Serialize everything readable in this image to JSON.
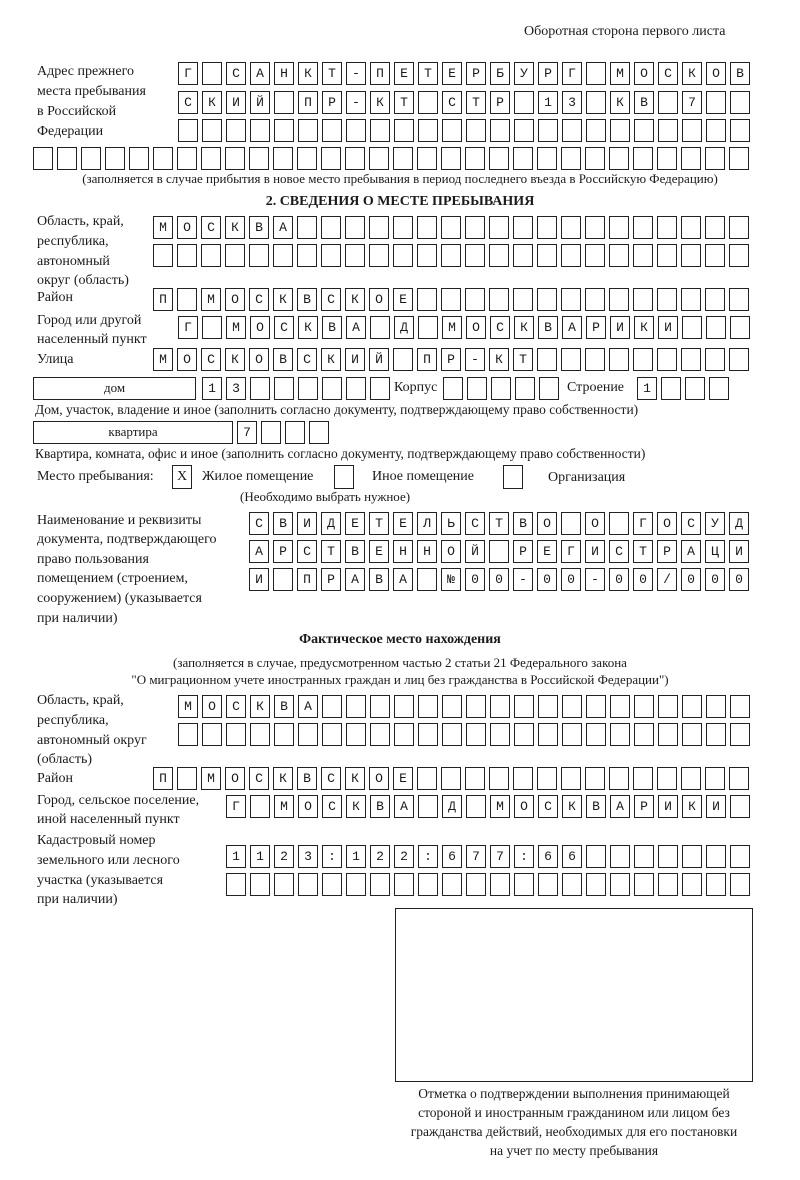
{
  "header": "Оборотная сторона первого листа",
  "prev_address": {
    "label": [
      "Адрес прежнего",
      "места пребывания",
      "в Российской",
      "Федерации"
    ],
    "rows": [
      "Г САНКТ-ПЕТЕРБУРГ МОСКОВ",
      "СКИЙ ПР-КТ СТР 13 КВ 7",
      "",
      ""
    ],
    "note": "(заполняется в случае прибытия в новое место пребывания в период последнего въезда в Российскую Федерацию)"
  },
  "section2": {
    "title": "2. СВЕДЕНИЯ О МЕСТЕ ПРЕБЫВАНИЯ",
    "region_label": [
      "Область, край,",
      "республика,",
      "автономный",
      "округ (область)"
    ],
    "region_rows": [
      "МОСКВА",
      ""
    ],
    "district_label": "Район",
    "district": "П МОСКВСКОЕ",
    "city_label": [
      "Город или другой",
      "населенный пункт"
    ],
    "city": "Г МОСКВА Д МОСКВАРИКИ",
    "street_label": "Улица",
    "street": "МОСКОВСКИЙ ПР-КТ",
    "house_type": "дом",
    "house": "13",
    "korpus_label": "Корпус",
    "korpus": "",
    "building_label": "Строение",
    "building": "1",
    "house_note": "Дом, участок, владение и иное (заполнить согласно документу, подтверждающему право собственности)",
    "flat_type": "квартира",
    "flat": "7",
    "flat_note": "Квартира, комната, офис и иное (заполнить согласно документу, подтверждающему право собственности)",
    "stay_label": "Место пребывания:",
    "stay_options": [
      {
        "label": "Жилое помещение",
        "mark": "X",
        "checked": true
      },
      {
        "label": "Иное помещение",
        "mark": "",
        "checked": false
      },
      {
        "label": "Организация",
        "mark": "",
        "checked": false
      }
    ],
    "stay_note": "(Необходимо выбрать нужное)",
    "doc_label": [
      "Наименование и реквизиты",
      "документа, подтверждающего",
      "право пользования",
      "помещением (строением,",
      "сооружением) (указывается",
      "при наличии)"
    ],
    "doc_rows": [
      "СВИДЕТЕЛЬСТВО О ГОСУД",
      "АРСТВЕННОЙ РЕГИСТРАЦИ",
      "И ПРАВА №00-00-00/000"
    ]
  },
  "actual": {
    "title": "Фактическое место нахождения",
    "note": [
      "(заполняется в случае, предусмотренном частью 2 статьи 21 Федерального закона",
      "\"О миграционном учете иностранных граждан и лиц без гражданства в Российской Федерации\")"
    ],
    "region_label": [
      "Область, край,",
      "республика,",
      "автономный округ",
      "(область)"
    ],
    "region_rows": [
      "МОСКВА",
      ""
    ],
    "district_label": "Район",
    "district": "П МОСКВСКОЕ",
    "city_label": [
      "Город, сельское поселение,",
      "иной населенный пункт"
    ],
    "city": "Г МОСКВА Д МОСКВАРИКИ",
    "cadastre_label": [
      "Кадастровый номер",
      "земельного или лесного",
      "участка (указывается",
      "при наличии)"
    ],
    "cadastre_rows": [
      "1123:122:677:66",
      ""
    ]
  },
  "stamp_caption": [
    "Отметка о подтверждении выполнения принимающей",
    "стороной и иностранным гражданином или лицом без",
    "гражданства действий, необходимых для его постановки",
    "на учет по месту пребывания"
  ]
}
